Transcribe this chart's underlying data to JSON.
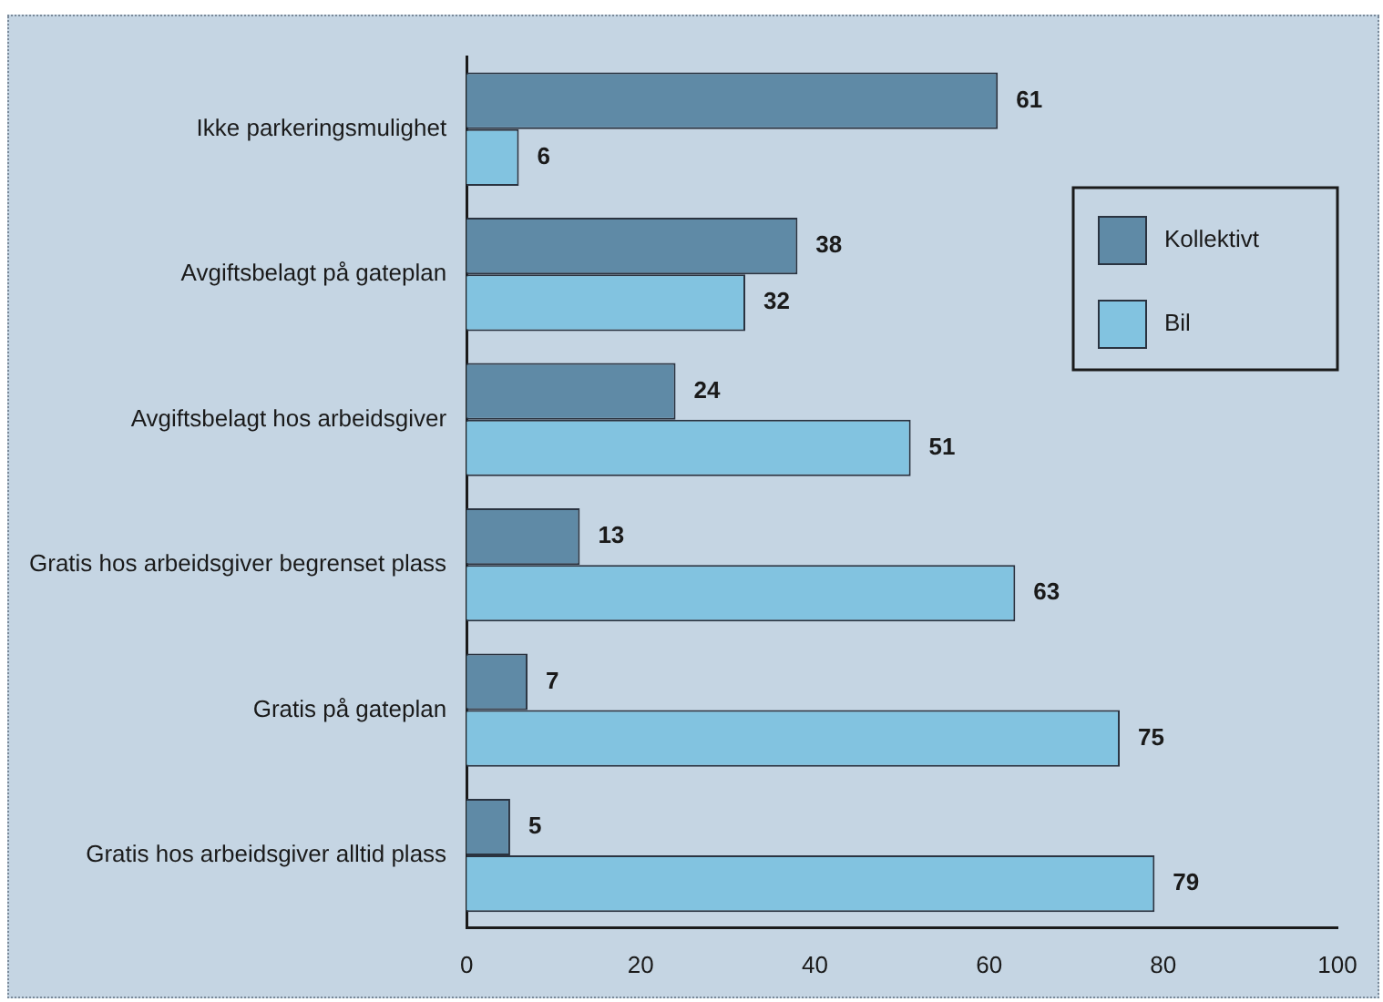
{
  "chart_data": {
    "type": "bar",
    "orientation": "horizontal",
    "categories": [
      "Ikke parkeringsmulighet",
      "Avgiftsbelagt på gateplan",
      "Avgiftsbelagt hos arbeidsgiver",
      "Gratis hos arbeidsgiver begrenset plass",
      "Gratis på gateplan",
      "Gratis hos arbeidsgiver alltid plass"
    ],
    "series": [
      {
        "name": "Kollektivt",
        "color": "#5f8aa6",
        "values": [
          61,
          38,
          24,
          13,
          7,
          5
        ]
      },
      {
        "name": "Bil",
        "color": "#82c3e0",
        "values": [
          6,
          32,
          51,
          63,
          75,
          79
        ]
      }
    ],
    "xlim": [
      0,
      100
    ],
    "xticks": [
      0,
      20,
      40,
      60,
      80,
      100
    ],
    "data_labels": true,
    "grid": false,
    "legend": "top right"
  }
}
